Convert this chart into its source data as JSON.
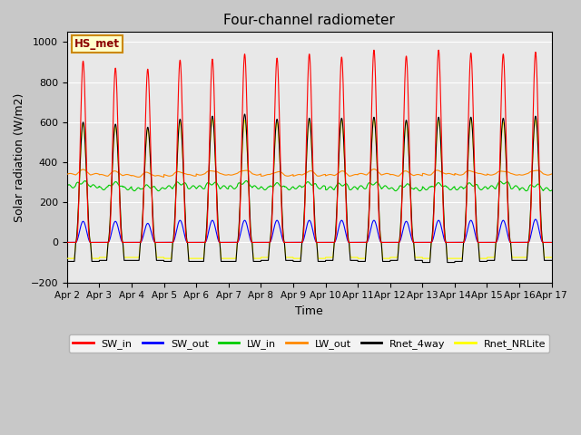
{
  "title": "Four-channel radiometer",
  "ylabel": "Solar radiation (W/m2)",
  "xlabel": "Time",
  "ylim": [
    -200,
    1050
  ],
  "xlim": [
    0,
    15
  ],
  "xtick_labels": [
    "Apr 2",
    "Apr 3",
    "Apr 4",
    "Apr 5",
    "Apr 6",
    "Apr 7",
    "Apr 8",
    "Apr 9",
    "Apr 10",
    "Apr 11",
    "Apr 12",
    "Apr 13",
    "Apr 14",
    "Apr 15",
    "Apr 16",
    "Apr 17"
  ],
  "xtick_positions": [
    0,
    1,
    2,
    3,
    4,
    5,
    6,
    7,
    8,
    9,
    10,
    11,
    12,
    13,
    14,
    15
  ],
  "station_label": "HS_met",
  "colors": {
    "SW_in": "#ff0000",
    "SW_out": "#0000ff",
    "LW_in": "#00cc00",
    "LW_out": "#ff8800",
    "Rnet_4way": "#000000",
    "Rnet_NRLite": "#ffff00"
  },
  "legend_labels": [
    "SW_in",
    "SW_out",
    "LW_in",
    "LW_out",
    "Rnet_4way",
    "Rnet_NRLite"
  ],
  "figure_bg": "#c8c8c8",
  "plot_bg": "#e8e8e8",
  "num_days": 15,
  "SW_in_peaks": [
    905,
    870,
    865,
    910,
    915,
    940,
    920,
    940,
    925,
    960,
    930,
    960,
    945,
    940,
    950
  ],
  "SW_out_peaks": [
    105,
    105,
    95,
    110,
    110,
    110,
    110,
    110,
    110,
    110,
    105,
    110,
    110,
    110,
    115
  ],
  "LW_in_base": [
    280,
    270,
    265,
    275,
    275,
    275,
    270,
    275,
    270,
    275,
    265,
    270,
    270,
    275,
    265
  ],
  "LW_in_day_bump": [
    20,
    25,
    15,
    20,
    20,
    25,
    20,
    20,
    20,
    20,
    20,
    20,
    20,
    25,
    20
  ],
  "LW_out_base": [
    340,
    335,
    330,
    335,
    340,
    340,
    335,
    335,
    335,
    340,
    335,
    340,
    340,
    340,
    340
  ],
  "LW_out_day_bump": [
    20,
    18,
    18,
    18,
    20,
    22,
    18,
    20,
    18,
    22,
    18,
    18,
    18,
    18,
    22
  ],
  "Rnet_4way_peaks": [
    600,
    590,
    575,
    615,
    630,
    640,
    615,
    620,
    620,
    625,
    610,
    625,
    625,
    620,
    630
  ],
  "Rnet_NRLite_peaks": [
    590,
    580,
    565,
    600,
    620,
    610,
    600,
    610,
    610,
    615,
    600,
    615,
    615,
    600,
    615
  ],
  "Rnet_4way_night": [
    -95,
    -90,
    -90,
    -95,
    -95,
    -95,
    -90,
    -95,
    -90,
    -95,
    -90,
    -100,
    -95,
    -90,
    -90
  ],
  "Rnet_NRLite_night": [
    -80,
    -75,
    -75,
    -80,
    -80,
    -80,
    -75,
    -80,
    -75,
    -80,
    -75,
    -80,
    -80,
    -75,
    -75
  ],
  "sunrise": 0.27,
  "sunset": 0.73,
  "peak_time": 0.5
}
